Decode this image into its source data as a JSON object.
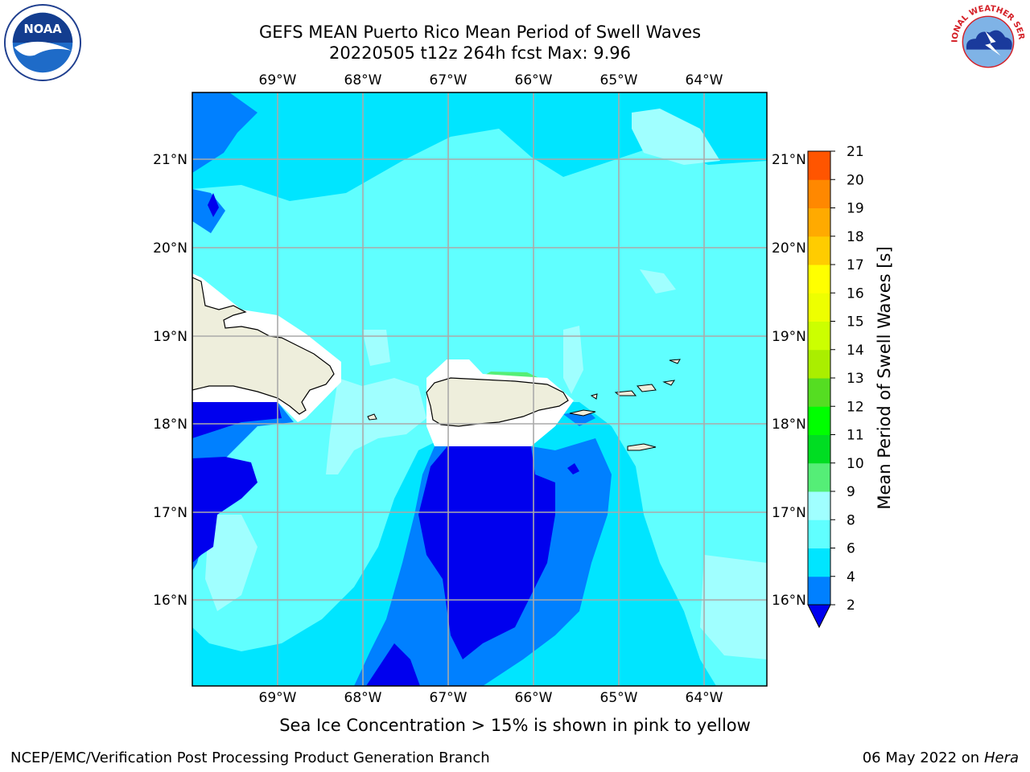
{
  "title": {
    "line1": "GEFS MEAN Puerto Rico Mean Period of Swell Waves",
    "line2": "20220505 t12z 264h fcst   Max: 9.96"
  },
  "logos": {
    "left": "noaa-logo",
    "left_text": "NOAA",
    "right": "nws-logo",
    "right_text": "NATIONAL WEATHER SERVICE"
  },
  "map": {
    "lon_labels": [
      "69°W",
      "68°W",
      "67°W",
      "66°W",
      "65°W",
      "64°W"
    ],
    "lat_labels": [
      "21°N",
      "20°N",
      "19°N",
      "18°N",
      "17°N",
      "16°N"
    ],
    "lon_range": [
      -70.0,
      -63.3
    ],
    "lat_range": [
      15.0,
      21.75
    ]
  },
  "colorbar": {
    "label": "Mean Period of Swell Waves [s]",
    "ticks": [
      "2",
      "4",
      "6",
      "8",
      "9",
      "10",
      "11",
      "12",
      "13",
      "14",
      "15",
      "16",
      "17",
      "18",
      "19",
      "20",
      "21"
    ],
    "colors": [
      "#0080ff",
      "#00e5ff",
      "#60ffff",
      "#a0ffff",
      "#55ee77",
      "#00dd22",
      "#00ff00",
      "#55dd22",
      "#aaee00",
      "#ccff00",
      "#eeff00",
      "#ffff00",
      "#ffcc00",
      "#ffaa00",
      "#ff8800",
      "#ff5500",
      "#ff2200",
      "#ff0000"
    ],
    "under_color": "#0000ee"
  },
  "colors": {
    "deep_blue": "#0000ee",
    "blue": "#0080ff",
    "cyan": "#00e5ff",
    "light_cyan": "#60ffff",
    "pale_cyan": "#a0ffff",
    "green": "#55ee77",
    "land": "#eeeedc"
  },
  "note": "Sea Ice Concentration > 15% is shown in pink to yellow",
  "footer": {
    "left": "NCEP/EMC/Verification Post Processing Product Generation Branch",
    "right_date": "06 May 2022 on",
    "right_host": "Hera"
  }
}
